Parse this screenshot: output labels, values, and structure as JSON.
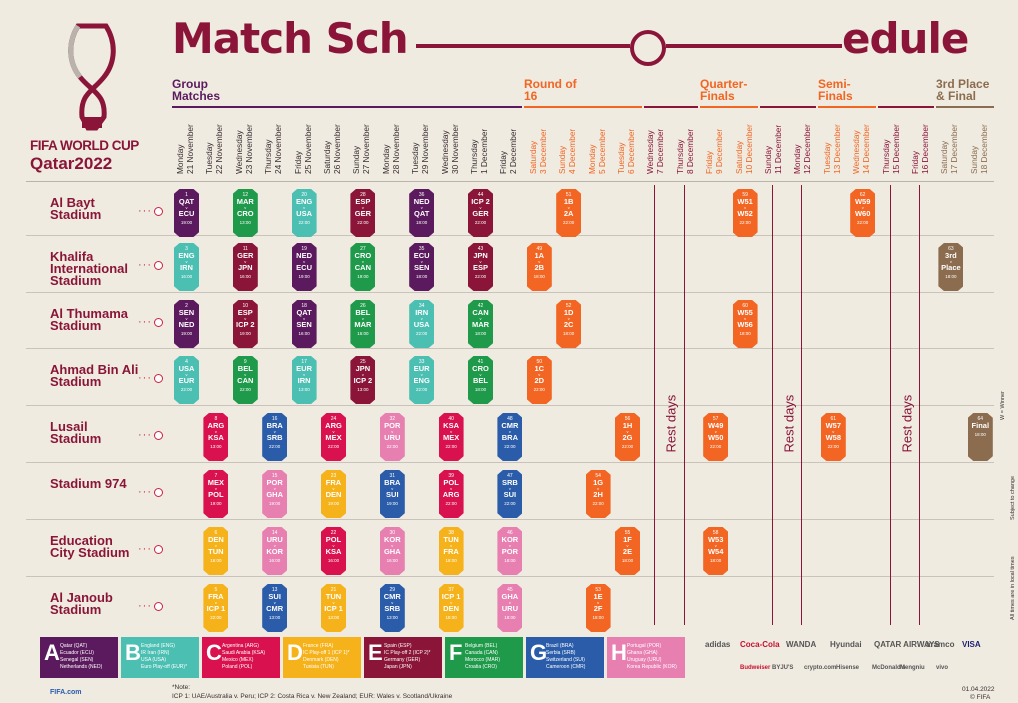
{
  "title": "Match Schedule",
  "brand": {
    "line1": "FIFA WORLD CUP",
    "line2": "Qatar2022"
  },
  "stages": {
    "group": "Group Matches",
    "r16": "Round of 16",
    "qf": "Quarter-Finals",
    "sf": "Semi-Finals",
    "final": "3rd Place & Final"
  },
  "days": [
    {
      "dow": "Monday",
      "date": "21 November"
    },
    {
      "dow": "Tuesday",
      "date": "22 November"
    },
    {
      "dow": "Wednesday",
      "date": "23 November"
    },
    {
      "dow": "Thursday",
      "date": "24 November"
    },
    {
      "dow": "Friday",
      "date": "25 November"
    },
    {
      "dow": "Saturday",
      "date": "26 November"
    },
    {
      "dow": "Sunday",
      "date": "27 November"
    },
    {
      "dow": "Monday",
      "date": "28 November"
    },
    {
      "dow": "Tuesday",
      "date": "29 November"
    },
    {
      "dow": "Wednesday",
      "date": "30 November"
    },
    {
      "dow": "Thursday",
      "date": "1 December"
    },
    {
      "dow": "Friday",
      "date": "2 December"
    },
    {
      "dow": "Saturday",
      "date": "3 December"
    },
    {
      "dow": "Sunday",
      "date": "4 December"
    },
    {
      "dow": "Monday",
      "date": "5 December"
    },
    {
      "dow": "Tuesday",
      "date": "6 December"
    },
    {
      "dow": "Wednesday",
      "date": "7 December"
    },
    {
      "dow": "Thursday",
      "date": "8 December"
    },
    {
      "dow": "Friday",
      "date": "9 December"
    },
    {
      "dow": "Saturday",
      "date": "10 December"
    },
    {
      "dow": "Sunday",
      "date": "11 December"
    },
    {
      "dow": "Monday",
      "date": "12 December"
    },
    {
      "dow": "Tuesday",
      "date": "13 December"
    },
    {
      "dow": "Wednesday",
      "date": "14 December"
    },
    {
      "dow": "Thursday",
      "date": "15 December"
    },
    {
      "dow": "Friday",
      "date": "16 December"
    },
    {
      "dow": "Saturday",
      "date": "17 December"
    },
    {
      "dow": "Sunday",
      "date": "18 December"
    }
  ],
  "venues": [
    "Al Bayt Stadium",
    "Khalifa International Stadium",
    "Al Thumama Stadium",
    "Ahmad Bin Ali Stadium",
    "Lusail Stadium",
    "Stadium 974",
    "Education City Stadium",
    "Al Janoub Stadium"
  ],
  "rest_label": "Rest days",
  "matches": [
    {
      "v": 0,
      "d": 0,
      "n": "1",
      "a": "QAT",
      "b": "ECU",
      "k": "19:00",
      "c": "#5b1a5e"
    },
    {
      "v": 0,
      "d": 2,
      "n": "12",
      "a": "MAR",
      "b": "CRO",
      "k": "13:00",
      "c": "#1e9a4a"
    },
    {
      "v": 0,
      "d": 4,
      "n": "20",
      "a": "ENG",
      "b": "USA",
      "k": "22:00",
      "c": "#4cbfb3"
    },
    {
      "v": 0,
      "d": 6,
      "n": "28",
      "a": "ESP",
      "b": "GER",
      "k": "22:00",
      "c": "#8a1538"
    },
    {
      "v": 0,
      "d": 8,
      "n": "36",
      "a": "NED",
      "b": "QAT",
      "k": "18:00",
      "c": "#5b1a5e"
    },
    {
      "v": 0,
      "d": 10,
      "n": "44",
      "a": "ICP 2",
      "b": "GER",
      "k": "22:00",
      "c": "#8a1538"
    },
    {
      "v": 0,
      "d": 13,
      "n": "51",
      "a": "1B",
      "b": "2A",
      "k": "22:00",
      "c": "#f26522"
    },
    {
      "v": 0,
      "d": 19,
      "n": "59",
      "a": "W51",
      "b": "W52",
      "k": "22:00",
      "c": "#f26522"
    },
    {
      "v": 0,
      "d": 23,
      "n": "62",
      "a": "W59",
      "b": "W60",
      "k": "22:00",
      "c": "#f26522"
    },
    {
      "v": 1,
      "d": 0,
      "n": "3",
      "a": "ENG",
      "b": "IRN",
      "k": "16:00",
      "c": "#4cbfb3"
    },
    {
      "v": 1,
      "d": 2,
      "n": "11",
      "a": "GER",
      "b": "JPN",
      "k": "16:00",
      "c": "#8a1538"
    },
    {
      "v": 1,
      "d": 4,
      "n": "19",
      "a": "NED",
      "b": "ECU",
      "k": "19:00",
      "c": "#5b1a5e"
    },
    {
      "v": 1,
      "d": 6,
      "n": "27",
      "a": "CRO",
      "b": "CAN",
      "k": "19:00",
      "c": "#1e9a4a"
    },
    {
      "v": 1,
      "d": 8,
      "n": "35",
      "a": "ECU",
      "b": "SEN",
      "k": "18:00",
      "c": "#5b1a5e"
    },
    {
      "v": 1,
      "d": 10,
      "n": "43",
      "a": "JPN",
      "b": "ESP",
      "k": "22:00",
      "c": "#8a1538"
    },
    {
      "v": 1,
      "d": 12,
      "n": "49",
      "a": "1A",
      "b": "2B",
      "k": "18:00",
      "c": "#f26522"
    },
    {
      "v": 1,
      "d": 26,
      "n": "63",
      "a": "3rd",
      "b": "Place",
      "k": "18:00",
      "c": "#8b6c4e"
    },
    {
      "v": 2,
      "d": 0,
      "n": "2",
      "a": "SEN",
      "b": "NED",
      "k": "19:00",
      "c": "#5b1a5e"
    },
    {
      "v": 2,
      "d": 2,
      "n": "10",
      "a": "ESP",
      "b": "ICP 2",
      "k": "19:00",
      "c": "#8a1538"
    },
    {
      "v": 2,
      "d": 4,
      "n": "18",
      "a": "QAT",
      "b": "SEN",
      "k": "16:00",
      "c": "#5b1a5e"
    },
    {
      "v": 2,
      "d": 6,
      "n": "26",
      "a": "BEL",
      "b": "MAR",
      "k": "16:00",
      "c": "#1e9a4a"
    },
    {
      "v": 2,
      "d": 8,
      "n": "34",
      "a": "IRN",
      "b": "USA",
      "k": "22:00",
      "c": "#4cbfb3"
    },
    {
      "v": 2,
      "d": 10,
      "n": "42",
      "a": "CAN",
      "b": "MAR",
      "k": "18:00",
      "c": "#1e9a4a"
    },
    {
      "v": 2,
      "d": 13,
      "n": "52",
      "a": "1D",
      "b": "2C",
      "k": "18:00",
      "c": "#f26522"
    },
    {
      "v": 2,
      "d": 19,
      "n": "60",
      "a": "W55",
      "b": "W56",
      "k": "18:00",
      "c": "#f26522"
    },
    {
      "v": 3,
      "d": 0,
      "n": "4",
      "a": "USA",
      "b": "EUR",
      "k": "22:00",
      "c": "#4cbfb3"
    },
    {
      "v": 3,
      "d": 2,
      "n": "9",
      "a": "BEL",
      "b": "CAN",
      "k": "22:00",
      "c": "#1e9a4a"
    },
    {
      "v": 3,
      "d": 4,
      "n": "17",
      "a": "EUR",
      "b": "IRN",
      "k": "13:00",
      "c": "#4cbfb3"
    },
    {
      "v": 3,
      "d": 6,
      "n": "25",
      "a": "JPN",
      "b": "ICP 2",
      "k": "13:00",
      "c": "#8a1538"
    },
    {
      "v": 3,
      "d": 8,
      "n": "33",
      "a": "EUR",
      "b": "ENG",
      "k": "22:00",
      "c": "#4cbfb3"
    },
    {
      "v": 3,
      "d": 10,
      "n": "41",
      "a": "CRO",
      "b": "BEL",
      "k": "18:00",
      "c": "#1e9a4a"
    },
    {
      "v": 3,
      "d": 12,
      "n": "50",
      "a": "1C",
      "b": "2D",
      "k": "22:00",
      "c": "#f26522"
    },
    {
      "v": 4,
      "d": 1,
      "n": "8",
      "a": "ARG",
      "b": "KSA",
      "k": "13:00",
      "c": "#d9124f"
    },
    {
      "v": 4,
      "d": 3,
      "n": "16",
      "a": "BRA",
      "b": "SRB",
      "k": "22:00",
      "c": "#2a5caa"
    },
    {
      "v": 4,
      "d": 5,
      "n": "24",
      "a": "ARG",
      "b": "MEX",
      "k": "22:00",
      "c": "#d9124f"
    },
    {
      "v": 4,
      "d": 7,
      "n": "32",
      "a": "POR",
      "b": "URU",
      "k": "22:00",
      "c": "#e87fb1"
    },
    {
      "v": 4,
      "d": 9,
      "n": "40",
      "a": "KSA",
      "b": "MEX",
      "k": "22:00",
      "c": "#d9124f"
    },
    {
      "v": 4,
      "d": 11,
      "n": "48",
      "a": "CMR",
      "b": "BRA",
      "k": "22:00",
      "c": "#2a5caa"
    },
    {
      "v": 4,
      "d": 15,
      "n": "56",
      "a": "1H",
      "b": "2G",
      "k": "22:00",
      "c": "#f26522"
    },
    {
      "v": 4,
      "d": 18,
      "n": "57",
      "a": "W49",
      "b": "W50",
      "k": "22:00",
      "c": "#f26522"
    },
    {
      "v": 4,
      "d": 22,
      "n": "61",
      "a": "W57",
      "b": "W58",
      "k": "22:00",
      "c": "#f26522"
    },
    {
      "v": 4,
      "d": 27,
      "n": "64",
      "a": "Final",
      "b": "",
      "k": "18:00",
      "c": "#8b6c4e"
    },
    {
      "v": 5,
      "d": 1,
      "n": "7",
      "a": "MEX",
      "b": "POL",
      "k": "19:00",
      "c": "#d9124f"
    },
    {
      "v": 5,
      "d": 3,
      "n": "15",
      "a": "POR",
      "b": "GHA",
      "k": "19:00",
      "c": "#e87fb1"
    },
    {
      "v": 5,
      "d": 5,
      "n": "23",
      "a": "FRA",
      "b": "DEN",
      "k": "19:00",
      "c": "#f6b21a"
    },
    {
      "v": 5,
      "d": 7,
      "n": "31",
      "a": "BRA",
      "b": "SUI",
      "k": "19:00",
      "c": "#2a5caa"
    },
    {
      "v": 5,
      "d": 9,
      "n": "39",
      "a": "POL",
      "b": "ARG",
      "k": "22:00",
      "c": "#d9124f"
    },
    {
      "v": 5,
      "d": 11,
      "n": "47",
      "a": "SRB",
      "b": "SUI",
      "k": "22:00",
      "c": "#2a5caa"
    },
    {
      "v": 5,
      "d": 14,
      "n": "54",
      "a": "1G",
      "b": "2H",
      "k": "22:00",
      "c": "#f26522"
    },
    {
      "v": 6,
      "d": 1,
      "n": "6",
      "a": "DEN",
      "b": "TUN",
      "k": "16:00",
      "c": "#f6b21a"
    },
    {
      "v": 6,
      "d": 3,
      "n": "14",
      "a": "URU",
      "b": "KOR",
      "k": "16:00",
      "c": "#e87fb1"
    },
    {
      "v": 6,
      "d": 5,
      "n": "22",
      "a": "POL",
      "b": "KSA",
      "k": "16:00",
      "c": "#d9124f"
    },
    {
      "v": 6,
      "d": 7,
      "n": "30",
      "a": "KOR",
      "b": "GHA",
      "k": "16:00",
      "c": "#e87fb1"
    },
    {
      "v": 6,
      "d": 9,
      "n": "38",
      "a": "TUN",
      "b": "FRA",
      "k": "18:00",
      "c": "#f6b21a"
    },
    {
      "v": 6,
      "d": 11,
      "n": "46",
      "a": "KOR",
      "b": "POR",
      "k": "18:00",
      "c": "#e87fb1"
    },
    {
      "v": 6,
      "d": 15,
      "n": "55",
      "a": "1F",
      "b": "2E",
      "k": "18:00",
      "c": "#f26522"
    },
    {
      "v": 6,
      "d": 18,
      "n": "58",
      "a": "W53",
      "b": "W54",
      "k": "18:00",
      "c": "#f26522"
    },
    {
      "v": 7,
      "d": 1,
      "n": "5",
      "a": "FRA",
      "b": "ICP 1",
      "k": "22:00",
      "c": "#f6b21a"
    },
    {
      "v": 7,
      "d": 3,
      "n": "13",
      "a": "SUI",
      "b": "CMR",
      "k": "13:00",
      "c": "#2a5caa"
    },
    {
      "v": 7,
      "d": 5,
      "n": "21",
      "a": "TUN",
      "b": "ICP 1",
      "k": "13:00",
      "c": "#f6b21a"
    },
    {
      "v": 7,
      "d": 7,
      "n": "29",
      "a": "CMR",
      "b": "SRB",
      "k": "13:00",
      "c": "#2a5caa"
    },
    {
      "v": 7,
      "d": 9,
      "n": "37",
      "a": "ICP 1",
      "b": "DEN",
      "k": "18:00",
      "c": "#f6b21a"
    },
    {
      "v": 7,
      "d": 11,
      "n": "45",
      "a": "GHA",
      "b": "URU",
      "k": "18:00",
      "c": "#e87fb1"
    },
    {
      "v": 7,
      "d": 14,
      "n": "53",
      "a": "1E",
      "b": "2F",
      "k": "18:00",
      "c": "#f26522"
    }
  ],
  "groups": [
    {
      "letter": "A",
      "c": "#5b1a5e",
      "teams": [
        "Qatar (QAT)",
        "Ecuador (ECU)",
        "Senegal (SEN)",
        "Netherlands (NED)"
      ]
    },
    {
      "letter": "B",
      "c": "#4cbfb3",
      "teams": [
        "England (ENG)",
        "IR Iran (IRN)",
        "USA (USA)",
        "Euro Play-off (EUR)*"
      ]
    },
    {
      "letter": "C",
      "c": "#d9124f",
      "teams": [
        "Argentina (ARG)",
        "Saudi Arabia (KSA)",
        "Mexico (MEX)",
        "Poland (POL)"
      ]
    },
    {
      "letter": "D",
      "c": "#f6b21a",
      "teams": [
        "France (FRA)",
        "IC Play-off 1 (ICP 1)*",
        "Denmark (DEN)",
        "Tunisia (TUN)"
      ]
    },
    {
      "letter": "E",
      "c": "#8a1538",
      "teams": [
        "Spain (ESP)",
        "IC Play-off 2 (ICP 2)*",
        "Germany (GER)",
        "Japan (JPN)"
      ]
    },
    {
      "letter": "F",
      "c": "#1e9a4a",
      "teams": [
        "Belgium (BEL)",
        "Canada (CAN)",
        "Morocco (MAR)",
        "Croatia (CRO)"
      ]
    },
    {
      "letter": "G",
      "c": "#2a5caa",
      "teams": [
        "Brazil (BRA)",
        "Serbia (SRB)",
        "Switzerland (SUI)",
        "Cameroon (CMR)"
      ]
    },
    {
      "letter": "H",
      "c": "#e87fb1",
      "teams": [
        "Portugal (POR)",
        "Ghana (GHA)",
        "Uruguay (URU)",
        "Korea Republic (KOR)"
      ]
    }
  ],
  "note": {
    "label": "*Note:",
    "text": "ICP 1: UAE/Australia v. Peru; ICP 2: Costa Rica v. New Zealand; EUR: Wales v. Scotland/Ukraine"
  },
  "footer": {
    "fifa": "FIFA.com",
    "date": "01.04.2022",
    "copyright": "© FIFA"
  },
  "side_notes": [
    "W = Winner",
    "Subject to change",
    "All times are in local times"
  ],
  "sponsors": [
    "adidas",
    "Coca-Cola",
    "WANDA",
    "Hyundai",
    "QATAR AIRWAYS",
    "aramco",
    "VISA",
    "Budweiser",
    "BYJU'S",
    "crypto.com",
    "Hisense",
    "McDonald's",
    "Mengniu",
    "vivo"
  ]
}
